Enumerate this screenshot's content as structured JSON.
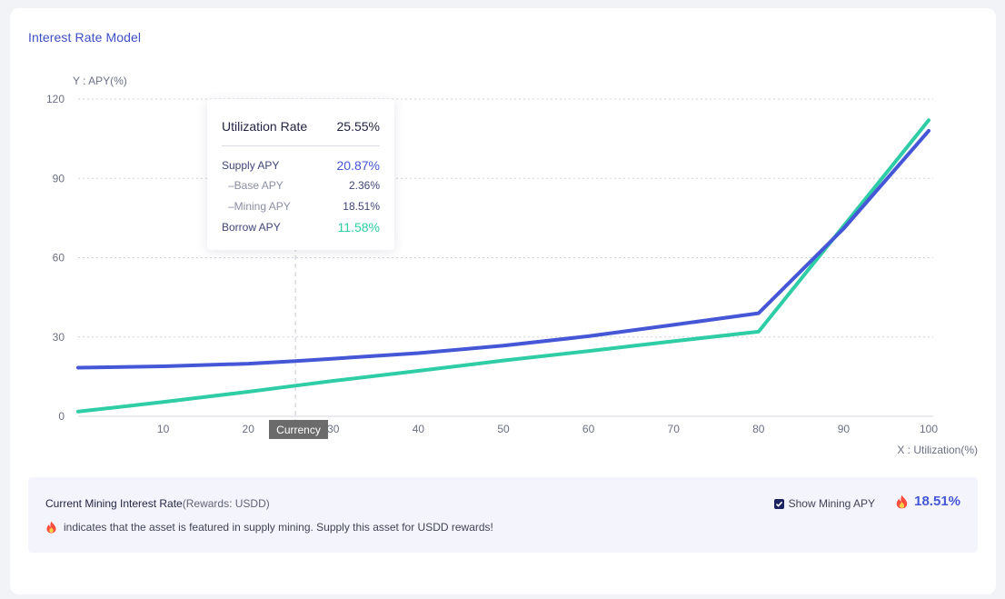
{
  "card": {
    "title": "Interest Rate Model"
  },
  "chart_data": {
    "type": "line",
    "ylabel": "Y : APY(%)",
    "xlabel": "X : Utilization(%)",
    "xlim": [
      0,
      100
    ],
    "ylim": [
      0,
      120
    ],
    "x_ticks": [
      10,
      20,
      30,
      40,
      50,
      60,
      70,
      80,
      90,
      100
    ],
    "y_ticks": [
      0,
      30,
      60,
      90,
      120
    ],
    "grid": "horizontal-dashed",
    "series": [
      {
        "name": "Supply APY",
        "color": "#4556d6",
        "x": [
          0,
          10,
          20,
          25.55,
          30,
          40,
          50,
          60,
          70,
          80,
          90,
          100
        ],
        "y": [
          18.4,
          18.9,
          19.9,
          20.87,
          21.8,
          23.9,
          26.7,
          30.3,
          34.6,
          39.0,
          71.0,
          108.0
        ]
      },
      {
        "name": "Borrow APY",
        "color": "#2ecda6",
        "x": [
          0,
          10,
          20,
          25.55,
          30,
          40,
          50,
          60,
          70,
          80,
          90,
          100
        ],
        "y": [
          1.8,
          5.4,
          9.3,
          11.58,
          13.4,
          17.2,
          21.1,
          24.7,
          28.4,
          32.0,
          72.0,
          112.0
        ]
      }
    ],
    "hover_x": 25.55
  },
  "tooltip": {
    "utilization_label": "Utilization Rate",
    "utilization_value": "25.55%",
    "supply_label": "Supply APY",
    "supply_value": "20.87%",
    "base_label": "–Base APY",
    "base_value": "2.36%",
    "mining_label": "–Mining APY",
    "mining_value": "18.51%",
    "borrow_label": "Borrow APY",
    "borrow_value": "11.58%"
  },
  "currency_tag": "Currency",
  "info": {
    "title": "Current Mining Interest Rate",
    "title_sub": "(Rewards: USDD)",
    "description": "indicates that the asset is featured in supply mining. Supply this asset for USDD rewards!",
    "show_mining_label": "Show Mining APY",
    "show_mining_checked": true,
    "mining_rate": "18.51%",
    "flame_icon": "flame-icon"
  }
}
